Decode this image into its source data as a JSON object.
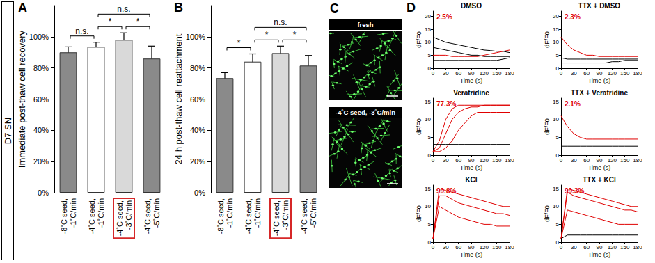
{
  "side_label": "D7 SN",
  "micrographs": {
    "panel_label": "C",
    "images": [
      {
        "label": "fresh"
      },
      {
        "label": "-4˚C seed, -3˚C/min"
      }
    ]
  },
  "chart_data": [
    {
      "type": "bar",
      "panel_label": "A",
      "ylabel": "Immediate post-thaw cell recovery",
      "categories": [
        "-8˚C seed,\n-1˚C/min",
        "-4˚C seed,\n-1˚C/min",
        "-4˚C seed,\n-3˚C/min",
        "-4˚C seed,\n-5˚C/min"
      ],
      "values": [
        90,
        93.5,
        98,
        86
      ],
      "error": [
        3.5,
        3,
        4.5,
        8
      ],
      "colors": [
        "#8a8a8a",
        "#ffffff",
        "#d9d9d9",
        "#8a8a8a"
      ],
      "ylim": [
        0,
        120
      ],
      "yticks": [
        {
          "value": 0,
          "label": "0%"
        },
        {
          "value": 20,
          "label": "20%"
        },
        {
          "value": 40,
          "label": "40%"
        },
        {
          "value": 60,
          "label": "60%"
        },
        {
          "value": 80,
          "label": "80%"
        },
        {
          "value": 100,
          "label": "100%"
        }
      ],
      "comparisons": [
        {
          "from": 0,
          "to": 1,
          "label": "n.s."
        },
        {
          "from": 1,
          "to": 2,
          "label": "*"
        },
        {
          "from": 2,
          "to": 3,
          "label": "*"
        },
        {
          "from": 1,
          "to": 3,
          "label": "n.s."
        }
      ],
      "grid": false
    },
    {
      "type": "bar",
      "panel_label": "B",
      "ylabel": "24 h post-thaw cell reattachment",
      "categories": [
        "-8˚C seed,\n-1˚C/min",
        "-4˚C seed,\n-1˚C/min",
        "-4˚C seed,\n-3˚C/min",
        "-4˚C seed,\n-5˚C/min"
      ],
      "values": [
        73.5,
        84,
        89.5,
        81.5
      ],
      "error": [
        3.5,
        5,
        4.5,
        6.5
      ],
      "colors": [
        "#8a8a8a",
        "#ffffff",
        "#d9d9d9",
        "#8a8a8a"
      ],
      "ylim": [
        0,
        120
      ],
      "yticks": [
        {
          "value": 0,
          "label": "0%"
        },
        {
          "value": 20,
          "label": "20%"
        },
        {
          "value": 40,
          "label": "40%"
        },
        {
          "value": 60,
          "label": "60%"
        },
        {
          "value": 80,
          "label": "80%"
        },
        {
          "value": 100,
          "label": "100%"
        }
      ],
      "comparisons": [
        {
          "from": 0,
          "to": 1,
          "label": "*"
        },
        {
          "from": 1,
          "to": 2,
          "label": "*"
        },
        {
          "from": 2,
          "to": 3,
          "label": "*"
        },
        {
          "from": 1,
          "to": 3,
          "label": "n.s."
        }
      ],
      "grid": false
    },
    {
      "type": "line",
      "panel_label": "D",
      "title": "DMSO",
      "annotation": "2.5%",
      "xlabel": "Time (s)",
      "ylabel": "dF/F0",
      "x": [
        0,
        15,
        30,
        45,
        60,
        75,
        90,
        105,
        120,
        135,
        150,
        165,
        180
      ],
      "xlim": [
        0,
        180
      ],
      "xticks": [
        0,
        30,
        60,
        90,
        120,
        150,
        180
      ],
      "ylim": [
        0,
        22
      ],
      "yticks": [
        0,
        5,
        10,
        15,
        20
      ],
      "grid": false,
      "series": [
        {
          "color": "#000000",
          "values": [
            12,
            11,
            10,
            9.5,
            9,
            8.5,
            8,
            7.5,
            7,
            6.8,
            6.5,
            6.5,
            6
          ]
        },
        {
          "color": "#000000",
          "values": [
            8,
            7.5,
            7,
            6.5,
            6,
            5.5,
            5,
            5,
            4.5,
            4.5,
            4.5,
            4.5,
            4.5
          ]
        },
        {
          "color": "#000000",
          "values": [
            3,
            3,
            3,
            3,
            3,
            3,
            3,
            3,
            3,
            3,
            3,
            3.5,
            4
          ]
        },
        {
          "color": "#e00000",
          "values": [
            5,
            5,
            5,
            4.5,
            4.5,
            4.5,
            4.5,
            4.5,
            5,
            5.5,
            6,
            6.5,
            7
          ]
        }
      ]
    },
    {
      "type": "line",
      "title": "TTX + DMSO",
      "annotation": "2.3%",
      "xlabel": "Time (s)",
      "ylabel": "dF/F0",
      "x": [
        0,
        15,
        30,
        45,
        60,
        75,
        90,
        105,
        120,
        135,
        150,
        165,
        180
      ],
      "xlim": [
        0,
        180
      ],
      "xticks": [
        0,
        30,
        60,
        90,
        120,
        150,
        180
      ],
      "ylim": [
        0,
        22
      ],
      "yticks": [
        0,
        5,
        10,
        15,
        20
      ],
      "grid": false,
      "series": [
        {
          "color": "#000000",
          "values": [
            4,
            3.5,
            3.5,
            3.5,
            3.5,
            3.5,
            3.5,
            3.5,
            3.5,
            3.5,
            3.5,
            3.5,
            3.5
          ]
        },
        {
          "color": "#000000",
          "values": [
            2,
            2,
            2,
            2,
            2,
            2,
            2,
            2,
            2.5,
            2.5,
            3,
            3,
            3
          ]
        },
        {
          "color": "#e00000",
          "values": [
            12,
            9,
            7,
            6,
            5,
            5,
            4.5,
            4.5,
            4.5,
            4.5,
            4.5,
            4.5,
            4.5
          ]
        }
      ]
    },
    {
      "type": "line",
      "title": "Veratridine",
      "annotation": "77.3%",
      "xlabel": "Time (s)",
      "ylabel": "dF/F0",
      "x": [
        0,
        15,
        30,
        45,
        60,
        75,
        90,
        105,
        120,
        135,
        150,
        165,
        180
      ],
      "xlim": [
        0,
        180
      ],
      "xticks": [
        0,
        30,
        60,
        90,
        120,
        150,
        180
      ],
      "ylim": [
        0,
        16
      ],
      "yticks": [
        0,
        5,
        10,
        15
      ],
      "grid": false,
      "series": [
        {
          "color": "#e00000",
          "values": [
            1,
            4,
            10,
            13,
            14,
            14,
            14,
            14,
            14,
            14,
            14,
            14,
            14
          ]
        },
        {
          "color": "#e00000",
          "values": [
            1,
            2,
            6,
            10,
            12,
            13,
            13.5,
            13.5,
            14,
            14,
            14,
            14,
            14
          ]
        },
        {
          "color": "#e00000",
          "values": [
            1,
            1,
            2,
            4,
            7,
            9,
            11,
            12,
            12,
            12,
            12,
            12,
            12
          ]
        },
        {
          "color": "#000000",
          "values": [
            4,
            4,
            4,
            4,
            4,
            4,
            4,
            4,
            4,
            4,
            4,
            4,
            4
          ]
        },
        {
          "color": "#000000",
          "values": [
            3,
            3,
            3,
            3,
            3,
            3,
            3,
            3,
            3,
            3,
            3,
            3,
            3
          ]
        }
      ]
    },
    {
      "type": "line",
      "title": "TTX + Veratridine",
      "annotation": "2.1%",
      "xlabel": "Time (s)",
      "ylabel": "dF/F0",
      "x": [
        0,
        15,
        30,
        45,
        60,
        75,
        90,
        105,
        120,
        135,
        150,
        165,
        180
      ],
      "xlim": [
        0,
        180
      ],
      "xticks": [
        0,
        30,
        60,
        90,
        120,
        150,
        180
      ],
      "ylim": [
        0,
        16
      ],
      "yticks": [
        0,
        5,
        10,
        15
      ],
      "grid": false,
      "series": [
        {
          "color": "#000000",
          "values": [
            4,
            4,
            4,
            4,
            4,
            4,
            4,
            4,
            4,
            4,
            4,
            4,
            4
          ]
        },
        {
          "color": "#000000",
          "values": [
            2.5,
            2.5,
            2.5,
            2.5,
            2.5,
            2.5,
            2.5,
            2.5,
            2.5,
            2.5,
            2.5,
            2.5,
            2.5
          ]
        },
        {
          "color": "#e00000",
          "values": [
            11,
            8,
            6,
            5,
            4.5,
            4.5,
            4.5,
            4.5,
            4.5,
            4.5,
            4.5,
            4.5,
            4.5
          ]
        }
      ]
    },
    {
      "type": "line",
      "title": "KCl",
      "annotation": "99.8%",
      "xlabel": "Time (s)",
      "ylabel": "dF/F0",
      "x": [
        0,
        15,
        30,
        45,
        60,
        75,
        90,
        105,
        120,
        135,
        150,
        165,
        180
      ],
      "xlim": [
        0,
        180
      ],
      "xticks": [
        0,
        30,
        60,
        90,
        120,
        150,
        180
      ],
      "ylim": [
        0,
        16
      ],
      "yticks": [
        0,
        5,
        10,
        15
      ],
      "grid": false,
      "series": [
        {
          "color": "#e00000",
          "values": [
            1,
            15,
            14.5,
            14,
            13.5,
            13,
            12.5,
            12,
            11.5,
            11,
            10.5,
            10,
            10
          ]
        },
        {
          "color": "#e00000",
          "values": [
            1,
            13,
            13,
            12,
            11,
            10.5,
            10,
            9.5,
            9,
            8.5,
            8,
            8,
            7.5
          ]
        },
        {
          "color": "#e00000",
          "values": [
            1,
            10,
            9,
            8,
            7,
            6.5,
            6,
            5.5,
            5,
            5,
            4.5,
            4.5,
            4.5
          ]
        }
      ]
    },
    {
      "type": "line",
      "title": "TTX + KCl",
      "annotation": "99.3%",
      "xlabel": "Time (s)",
      "ylabel": "dF/F0",
      "x": [
        0,
        15,
        30,
        45,
        60,
        75,
        90,
        105,
        120,
        135,
        150,
        165,
        180
      ],
      "xlim": [
        0,
        180
      ],
      "xticks": [
        0,
        30,
        60,
        90,
        120,
        150,
        180
      ],
      "ylim": [
        0,
        16
      ],
      "yticks": [
        0,
        5,
        10,
        15
      ],
      "grid": false,
      "series": [
        {
          "color": "#e00000",
          "values": [
            1,
            15,
            14.5,
            14,
            13.5,
            13,
            12.5,
            12,
            11.5,
            11,
            10.5,
            10,
            10
          ]
        },
        {
          "color": "#e00000",
          "values": [
            1,
            14,
            13,
            12.5,
            12,
            11.5,
            11,
            10.5,
            10,
            9.5,
            9,
            9,
            8.5
          ]
        },
        {
          "color": "#e00000",
          "values": [
            1,
            9,
            8.5,
            8,
            7.5,
            7,
            6.5,
            6,
            5.5,
            5,
            5,
            5,
            5
          ]
        },
        {
          "color": "#000000",
          "values": [
            1,
            2,
            2,
            2,
            2,
            2,
            2,
            2,
            2,
            2,
            2,
            2,
            2
          ]
        }
      ]
    }
  ]
}
